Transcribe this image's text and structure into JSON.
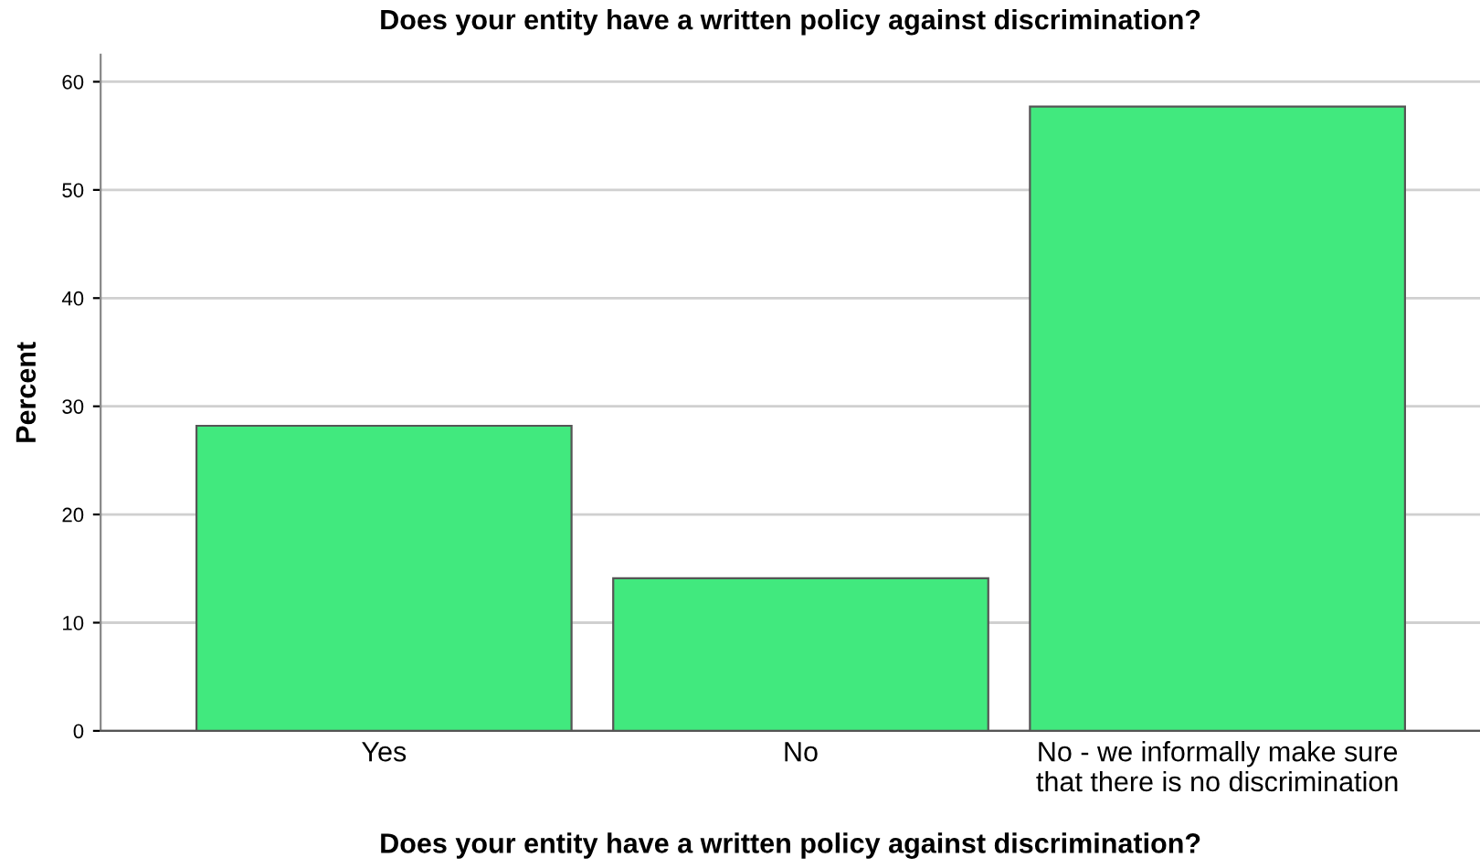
{
  "chart_data": {
    "type": "bar",
    "title": "Does your entity have a written policy against discrimination?",
    "xlabel": "Does your entity have a written policy against discrimination?",
    "ylabel": "Percent",
    "categories": [
      "Yes",
      "No",
      "No - we informally make sure\nthat there is no discrimination"
    ],
    "values": [
      28.2,
      14.1,
      57.7
    ],
    "color": "#41e97e",
    "ylim": [
      0,
      62.5
    ],
    "yticks": [
      0,
      10,
      20,
      30,
      40,
      50,
      60
    ],
    "grid": "y",
    "legend": false
  }
}
